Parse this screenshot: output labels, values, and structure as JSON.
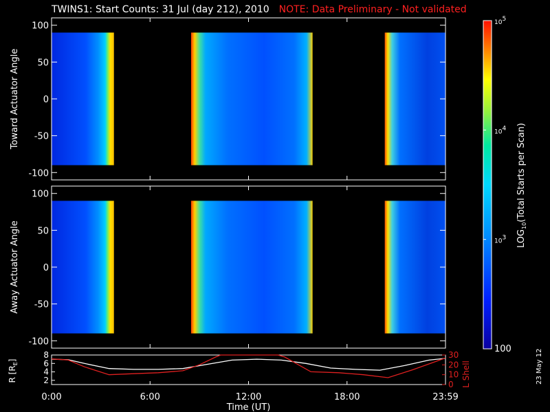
{
  "header": {
    "title": "TWINS1: Start Counts: 31 Jul (day 212), 2010",
    "note": "NOTE: Data Preliminary - Not validated"
  },
  "footer": {
    "date": "23 May 12"
  },
  "colors": {
    "background": "#000000",
    "axes": "#ffffff",
    "note": "#ff2020",
    "lshell": "#e02020",
    "radius": "#ffffff"
  },
  "chart_data": [
    {
      "type": "heatmap",
      "title": "",
      "xlabel": "",
      "ylabel": "Toward Actuator Angle",
      "xlim": [
        0,
        24
      ],
      "ylim": [
        -110,
        110
      ],
      "yticks": [
        -100,
        -50,
        0,
        50,
        100
      ],
      "data_ylim": [
        -90,
        90
      ],
      "data_blocks_hours": [
        [
          0.0,
          3.8
        ],
        [
          8.5,
          15.9
        ],
        [
          20.3,
          24.0
        ]
      ],
      "colormap_log10_range": [
        2,
        5
      ]
    },
    {
      "type": "heatmap",
      "title": "",
      "xlabel": "",
      "ylabel": "Away Actuator Angle",
      "xlim": [
        0,
        24
      ],
      "ylim": [
        -110,
        110
      ],
      "yticks": [
        -100,
        -50,
        0,
        50,
        100
      ],
      "data_ylim": [
        -90,
        90
      ],
      "data_blocks_hours": [
        [
          0.0,
          3.8
        ],
        [
          8.5,
          15.9
        ],
        [
          20.3,
          24.0
        ]
      ],
      "colormap_log10_range": [
        2,
        5
      ]
    },
    {
      "type": "line",
      "xlabel": "Time (UT)",
      "x_tick_labels": [
        "0:00",
        "6:00",
        "12:00",
        "18:00",
        "23:59"
      ],
      "x_tick_hours": [
        0,
        6,
        12,
        18,
        24
      ],
      "ylabel_left": "R [R",
      "ylabel_left_sub": "E",
      "ylabel_left_end": "]",
      "ylim_left": [
        1,
        8
      ],
      "yticks_left": [
        2,
        4,
        6,
        8
      ],
      "ylabel_right": "L Shell",
      "ylim_right": [
        0,
        30
      ],
      "yticks_right": [
        0,
        10,
        20,
        30
      ],
      "series": [
        {
          "name": "R",
          "color": "#ffffff",
          "axis": "left",
          "x": [
            0.0,
            1.0,
            2.0,
            3.5,
            5.0,
            6.5,
            8.0,
            9.5,
            11.0,
            12.5,
            14.0,
            15.5,
            17.0,
            18.5,
            20.0,
            21.5,
            23.0,
            24.0
          ],
          "y": [
            7.0,
            6.9,
            6.0,
            4.8,
            4.6,
            4.6,
            4.8,
            5.8,
            6.8,
            7.0,
            6.8,
            6.0,
            4.9,
            4.6,
            4.4,
            5.5,
            6.8,
            7.2
          ]
        },
        {
          "name": "L Shell",
          "color": "#e02020",
          "axis": "right",
          "x": [
            0.0,
            1.0,
            2.0,
            3.5,
            5.0,
            6.5,
            8.0,
            9.0,
            10.0,
            10.3,
            13.8,
            14.2,
            15.8,
            17.5,
            19.0,
            20.5,
            22.0,
            23.5,
            24.0
          ],
          "y": [
            26,
            25,
            18,
            10,
            11,
            12,
            14,
            20,
            28,
            30,
            30,
            28,
            13,
            12,
            10,
            7,
            15,
            24,
            27
          ]
        }
      ]
    }
  ],
  "colorbar": {
    "label_prefix": "LOG",
    "label_sub": "10",
    "label_suffix": "(Total Starts per Scan)",
    "ticks": [
      {
        "base": "10",
        "exp": "5",
        "value": 5
      },
      {
        "base": "10",
        "exp": "4",
        "value": 4
      },
      {
        "base": "10",
        "exp": "3",
        "value": 3
      }
    ],
    "bottom_label": "100"
  }
}
